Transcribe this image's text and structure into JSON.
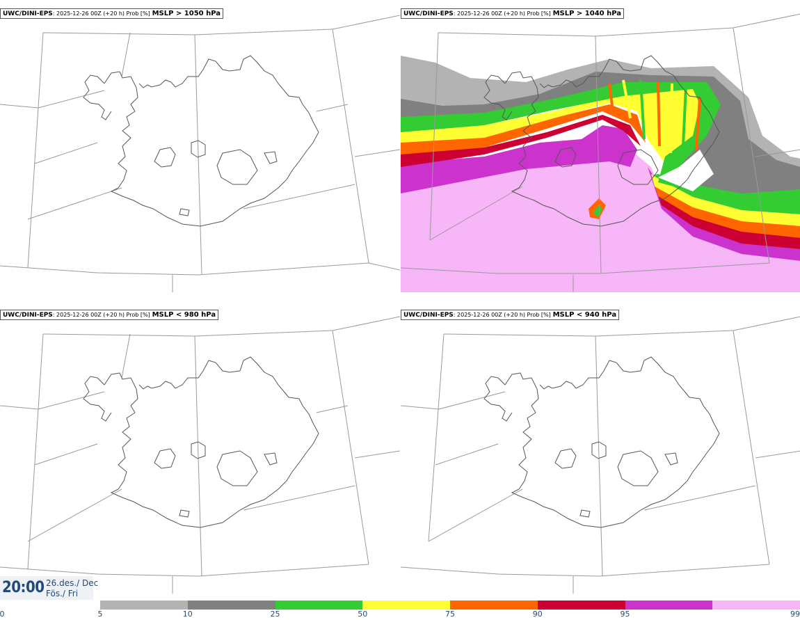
{
  "panels": [
    {
      "model": "UWC/DINI-EPS",
      "run": ": 2025-12-26 00Z (+20 h) Prob [%]",
      "criterion": "MSLP > 1050 hPa",
      "has_field": false
    },
    {
      "model": "UWC/DINI-EPS",
      "run": ": 2025-12-26 00Z (+20 h) Prob [%]",
      "criterion": "MSLP > 1040 hPa",
      "has_field": true
    },
    {
      "model": "UWC/DINI-EPS",
      "run": ": 2025-12-26 00Z (+20 h) Prob [%]",
      "criterion": "MSLP < 980 hPa",
      "has_field": false
    },
    {
      "model": "UWC/DINI-EPS",
      "run": ": 2025-12-26 00Z (+20 h) Prob [%]",
      "criterion": "MSLP < 940 hPa",
      "has_field": false
    }
  ],
  "time": {
    "clock": "20:00",
    "date_line": "26.des./ Dec",
    "day_line": "Fös./ Fri"
  },
  "legend": {
    "ticks": [
      "0",
      "5",
      "10",
      "25",
      "50",
      "75",
      "90",
      "95",
      "99"
    ],
    "colors": [
      "#b3b3b3",
      "#808080",
      "#33cc33",
      "#ffff33",
      "#ff6600",
      "#cc0033",
      "#cc33cc",
      "#f7b6f7"
    ]
  }
}
